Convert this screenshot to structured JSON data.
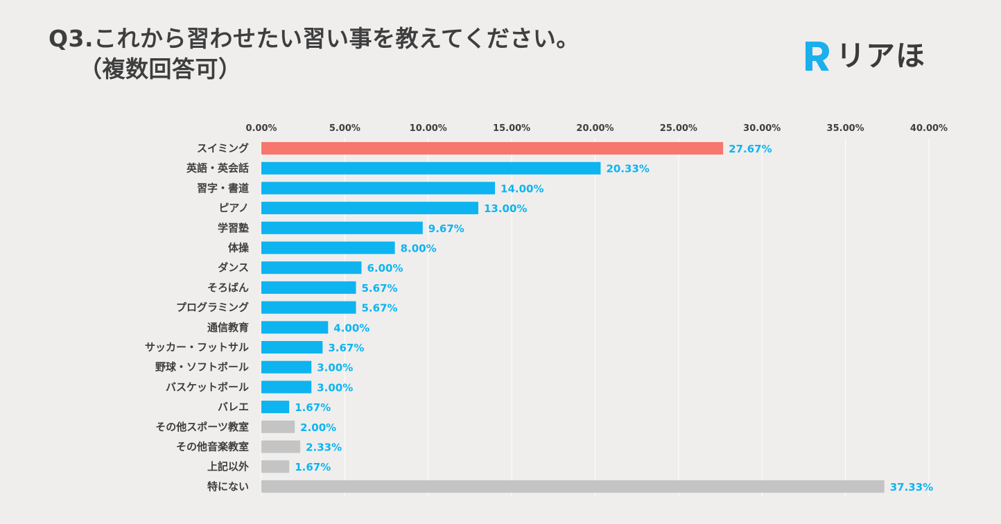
{
  "title": {
    "line1": "Q3.これから習わせたい習い事を教えてください。",
    "line2": "（複数回答可）"
  },
  "logo": {
    "text": "リアほ",
    "mark_color": "#1ab0ec"
  },
  "colors": {
    "highlight": "#f7766d",
    "primary": "#0db4f0",
    "other": "#c4c4c4",
    "value_label": "#0db4f0",
    "axis_label": "#3e3e3e",
    "grid": "#ffffff"
  },
  "chart_data": {
    "type": "bar",
    "orientation": "horizontal",
    "xlim": [
      0,
      40
    ],
    "ticks": [
      "0.00%",
      "5.00%",
      "10.00%",
      "15.00%",
      "20.00%",
      "25.00%",
      "30.00%",
      "35.00%",
      "40.00%"
    ],
    "tick_values": [
      0,
      5,
      10,
      15,
      20,
      25,
      30,
      35,
      40
    ],
    "grid": true,
    "categories": [
      "スイミング",
      "英語・英会話",
      "習字・書道",
      "ピアノ",
      "学習塾",
      "体操",
      "ダンス",
      "そろばん",
      "プログラミング",
      "通信教育",
      "サッカー・フットサル",
      "野球・ソフトボール",
      "バスケットボール",
      "バレエ",
      "その他スポーツ教室",
      "その他音楽教室",
      "上記以外",
      "特にない"
    ],
    "values": [
      27.67,
      20.33,
      14.0,
      13.0,
      9.67,
      8.0,
      6.0,
      5.67,
      5.67,
      4.0,
      3.67,
      3.0,
      3.0,
      1.67,
      2.0,
      2.33,
      1.67,
      37.33
    ],
    "labels": [
      "27.67%",
      "20.33%",
      "14.00%",
      "13.00%",
      "9.67%",
      "8.00%",
      "6.00%",
      "5.67%",
      "5.67%",
      "4.00%",
      "3.67%",
      "3.00%",
      "3.00%",
      "1.67%",
      "2.00%",
      "2.33%",
      "1.67%",
      "37.33%"
    ],
    "bar_groups": [
      "highlight",
      "primary",
      "primary",
      "primary",
      "primary",
      "primary",
      "primary",
      "primary",
      "primary",
      "primary",
      "primary",
      "primary",
      "primary",
      "primary",
      "other",
      "other",
      "other",
      "other"
    ]
  }
}
